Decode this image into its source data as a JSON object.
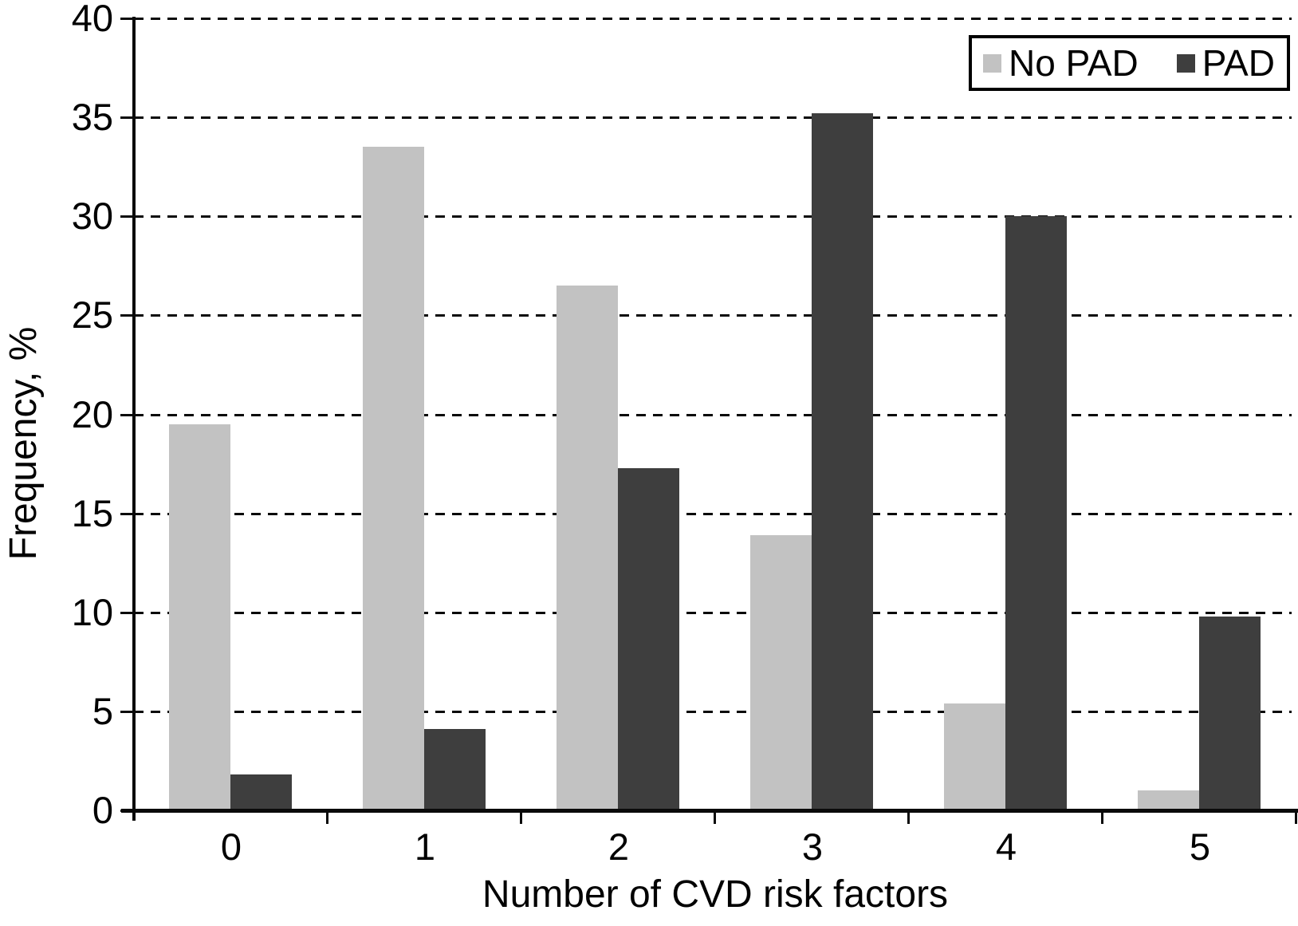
{
  "chart_data": {
    "type": "bar",
    "title": "",
    "xlabel": "Number of CVD risk factors",
    "ylabel": "Frequency, %",
    "categories": [
      "0",
      "1",
      "2",
      "3",
      "4",
      "5"
    ],
    "series": [
      {
        "name": "No PAD",
        "color": "#c2c2c2",
        "values": [
          19.5,
          33.5,
          26.5,
          13.9,
          5.4,
          1.0
        ]
      },
      {
        "name": "PAD",
        "color": "#3e3e3e",
        "values": [
          1.8,
          4.1,
          17.3,
          35.2,
          30.0,
          9.8
        ]
      }
    ],
    "ylim": [
      0,
      40
    ],
    "ytick_step": 5,
    "ytick_labels": [
      "0",
      "5",
      "10",
      "15",
      "20",
      "25",
      "30",
      "35",
      "40"
    ],
    "grid": "horizontal-dashed",
    "legend_position": "top-right",
    "axis_color": "#000000",
    "background_color": "#ffffff"
  }
}
